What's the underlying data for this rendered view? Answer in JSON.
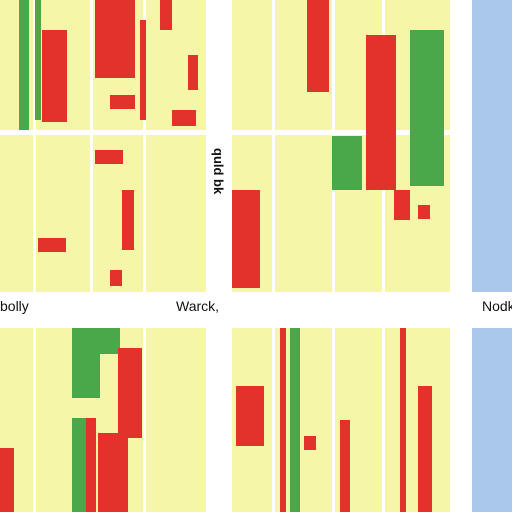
{
  "labels": {
    "left": "bolly",
    "center": "Warck,",
    "right": "Nodk",
    "vertical": "quld bk"
  },
  "colors": {
    "cell_background": "#f6f6a8",
    "red": "#e2322b",
    "green": "#4aa84a",
    "scroll": "#a9c8ec"
  }
}
